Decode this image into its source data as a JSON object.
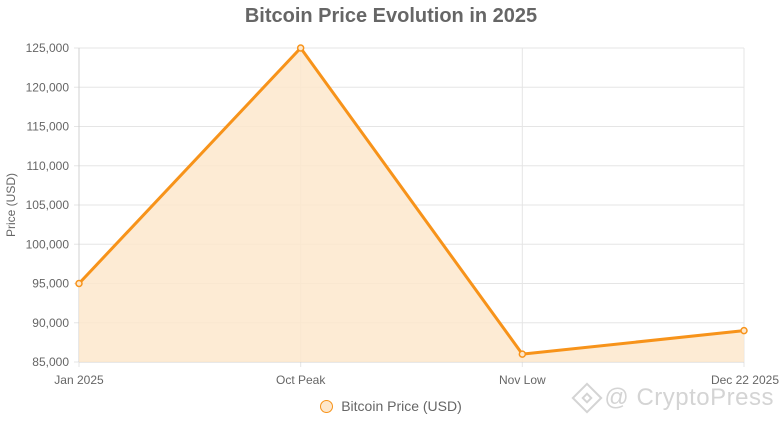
{
  "chart_data": {
    "type": "area",
    "title": "Bitcoin Price Evolution in 2025",
    "xlabel": "",
    "ylabel": "Price (USD)",
    "categories": [
      "Jan 2025",
      "Oct Peak",
      "Nov Low",
      "Dec 22 2025"
    ],
    "series": [
      {
        "name": "Bitcoin Price (USD)",
        "values": [
          95000,
          125000,
          86000,
          89000
        ]
      }
    ],
    "ylim": [
      85000,
      125000
    ],
    "yticks": [
      85000,
      90000,
      95000,
      100000,
      105000,
      110000,
      115000,
      120000,
      125000
    ],
    "ytick_labels": [
      "85,000",
      "90,000",
      "95,000",
      "100,000",
      "105,000",
      "110,000",
      "115,000",
      "120,000",
      "125,000"
    ],
    "grid": true,
    "legend_position": "bottom",
    "line_color": "#f7931a",
    "fill_color": "#fde7cc"
  },
  "watermark": {
    "text": "@ CryptoPress",
    "icon": "diamond-logo-icon"
  }
}
